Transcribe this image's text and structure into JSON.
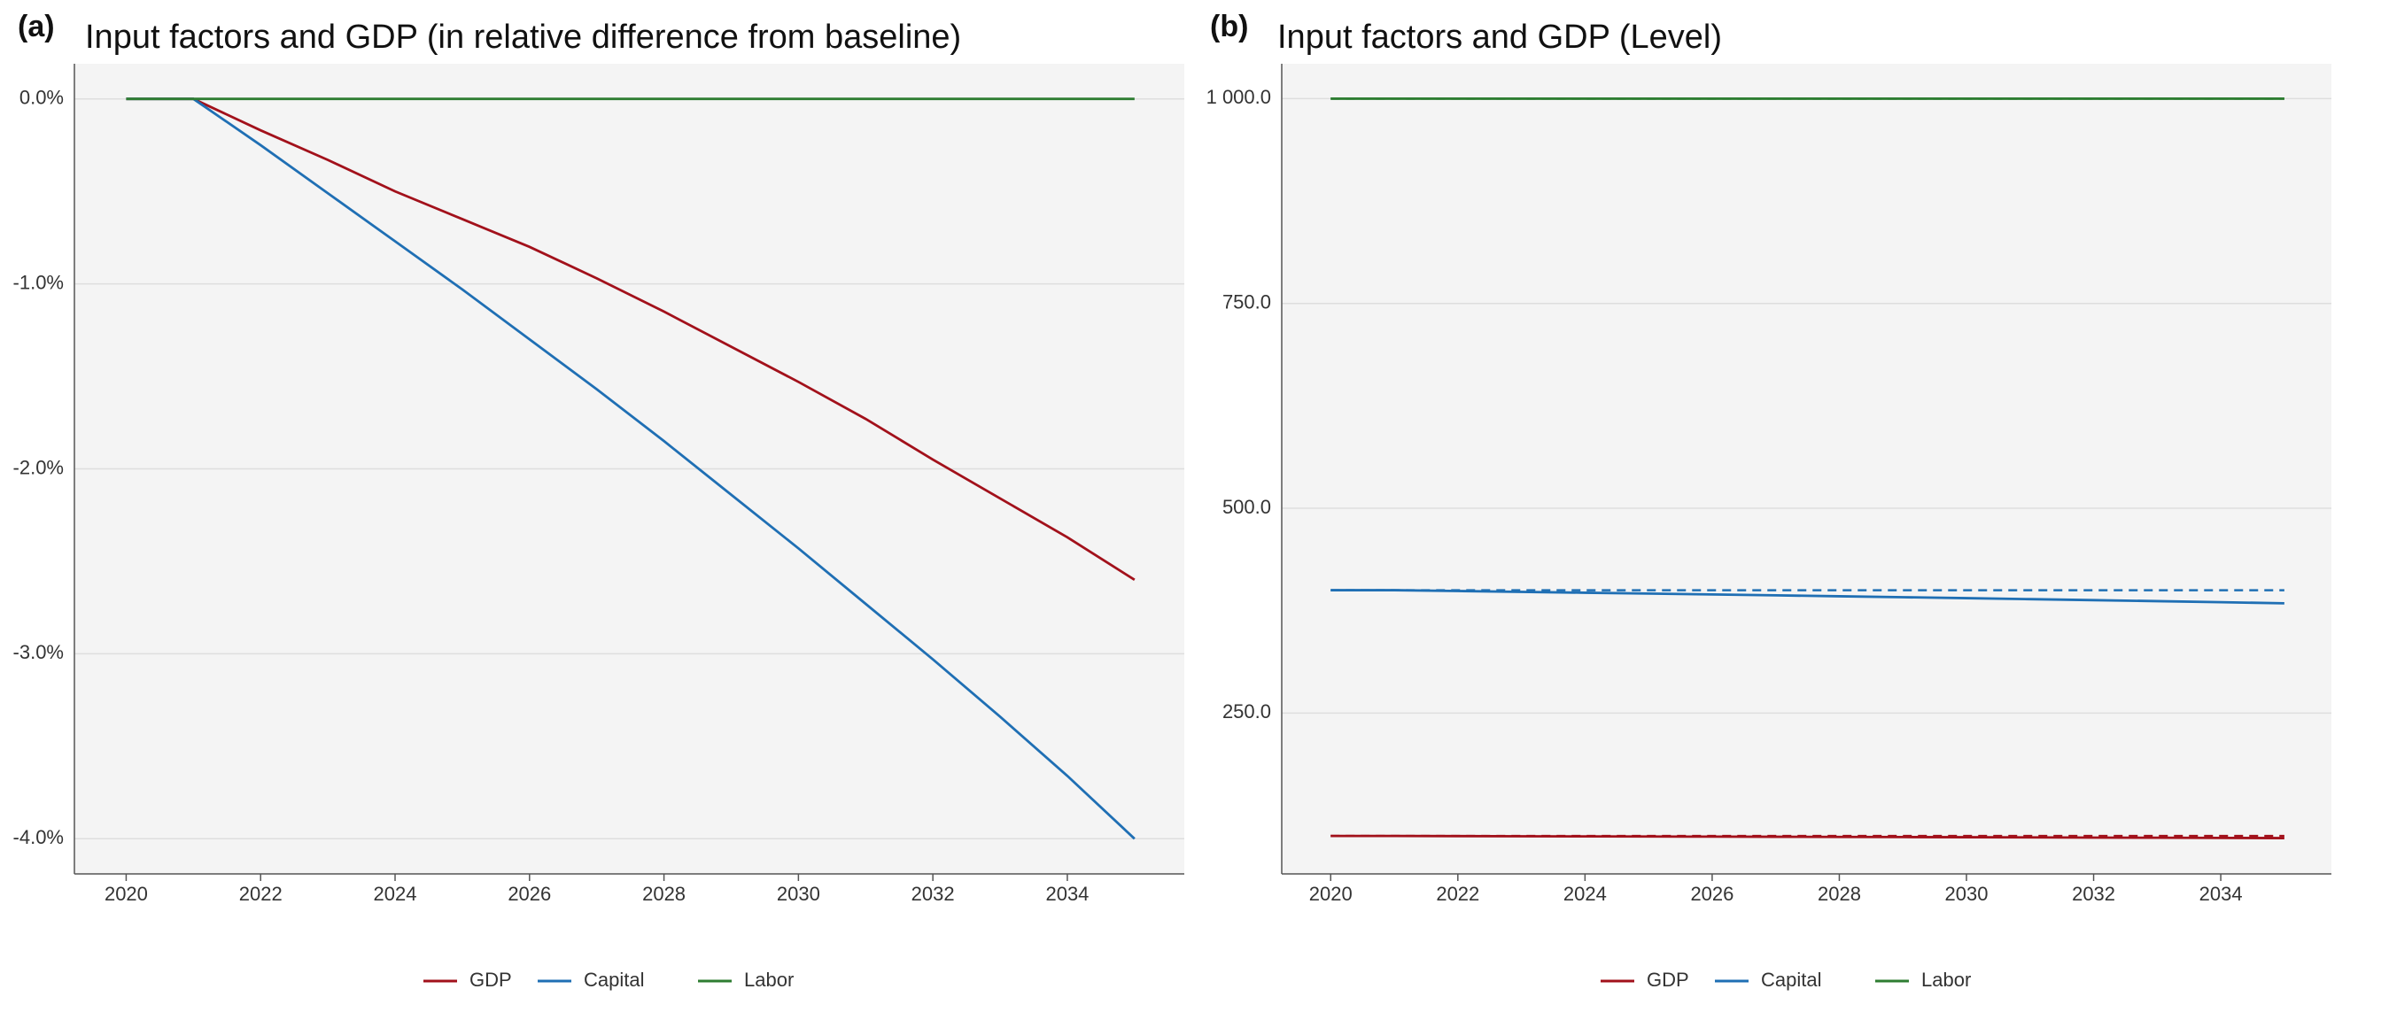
{
  "chart_data": [
    {
      "type": "line",
      "panel_label": "(a)",
      "title": "Input factors and GDP (in relative difference from baseline)",
      "x": [
        2020,
        2021,
        2022,
        2023,
        2024,
        2025,
        2026,
        2027,
        2028,
        2029,
        2030,
        2031,
        2032,
        2033,
        2034,
        2035
      ],
      "xlim": [
        2019.23,
        2035.74
      ],
      "xticks": [
        2020,
        2022,
        2024,
        2026,
        2028,
        2030,
        2032,
        2034
      ],
      "ylim": [
        -4.19,
        0.19
      ],
      "yticks": [
        {
          "value": -4,
          "label": "-4.0%"
        },
        {
          "value": -3,
          "label": "-3.0%"
        },
        {
          "value": -2,
          "label": "-2.0%"
        },
        {
          "value": -1,
          "label": "-1.0%"
        },
        {
          "value": 0,
          "label": "0.0%"
        }
      ],
      "grid": true,
      "series": [
        {
          "name": "GDP",
          "color": "#a2111b",
          "values": [
            0,
            0,
            -0.17,
            -0.33,
            -0.5,
            -0.65,
            -0.8,
            -0.97,
            -1.15,
            -1.34,
            -1.53,
            -1.73,
            -1.95,
            -2.16,
            -2.37,
            -2.6
          ]
        },
        {
          "name": "Capital",
          "color": "#1f6fb4",
          "values": [
            0,
            0,
            -0.25,
            -0.51,
            -0.77,
            -1.03,
            -1.3,
            -1.57,
            -1.85,
            -2.14,
            -2.43,
            -2.73,
            -3.03,
            -3.34,
            -3.66,
            -4.0
          ]
        },
        {
          "name": "Labor",
          "color": "#2e7d32",
          "values": [
            0,
            0,
            0,
            0,
            0,
            0,
            0,
            0,
            0,
            0,
            0,
            0,
            0,
            0,
            0,
            0
          ]
        }
      ]
    },
    {
      "type": "line",
      "panel_label": "(b)",
      "title": "Input factors and GDP (Level)",
      "x": [
        2020,
        2021,
        2022,
        2023,
        2024,
        2025,
        2026,
        2027,
        2028,
        2029,
        2030,
        2031,
        2032,
        2033,
        2034,
        2035
      ],
      "xlim": [
        2019.23,
        2035.74
      ],
      "xticks": [
        2020,
        2022,
        2024,
        2026,
        2028,
        2030,
        2032,
        2034
      ],
      "ylim": [
        53.7,
        1042.6
      ],
      "yticks": [
        {
          "value": 250,
          "label": "250.0"
        },
        {
          "value": 500,
          "label": "500.0"
        },
        {
          "value": 750,
          "label": "750.0"
        },
        {
          "value": 1000,
          "label": "1 000.0"
        }
      ],
      "grid": true,
      "series": [
        {
          "name": "GDP",
          "color": "#a2111b",
          "values": [
            100,
            100,
            99.83,
            99.67,
            99.5,
            99.35,
            99.2,
            99.03,
            98.85,
            98.66,
            98.47,
            98.27,
            98.05,
            97.84,
            97.63,
            97.4
          ],
          "baseline": [
            100,
            100,
            100,
            100,
            100,
            100,
            100,
            100,
            100,
            100,
            100,
            100,
            100,
            100,
            100,
            100
          ]
        },
        {
          "name": "Capital",
          "color": "#1f6fb4",
          "values": [
            400,
            400,
            399,
            397.96,
            396.92,
            395.88,
            394.8,
            393.72,
            392.6,
            391.44,
            390.28,
            389.08,
            387.88,
            386.64,
            385.36,
            384
          ],
          "baseline": [
            400,
            400,
            400,
            400,
            400,
            400,
            400,
            400,
            400,
            400,
            400,
            400,
            400,
            400,
            400,
            400
          ]
        },
        {
          "name": "Labor",
          "color": "#2e7d32",
          "values": [
            1000,
            1000,
            1000,
            1000,
            1000,
            1000,
            1000,
            1000,
            1000,
            1000,
            1000,
            1000,
            1000,
            1000,
            1000,
            1000
          ],
          "baseline": [
            1000,
            1000,
            1000,
            1000,
            1000,
            1000,
            1000,
            1000,
            1000,
            1000,
            1000,
            1000,
            1000,
            1000,
            1000,
            1000
          ]
        }
      ]
    }
  ]
}
